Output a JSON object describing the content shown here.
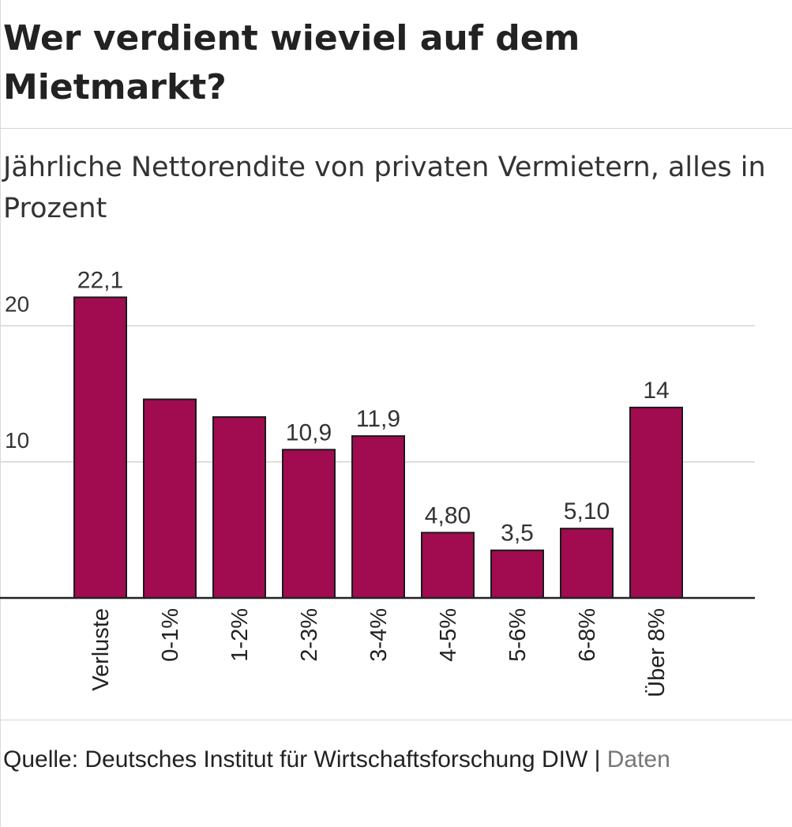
{
  "header": {
    "title": "Wer verdient wieviel auf dem Mietmarkt?",
    "subtitle": "Jährliche Nettorendite von privaten Vermietern, alles in Prozent"
  },
  "chart_data": {
    "type": "bar",
    "categories": [
      "Verluste",
      "0-1%",
      "1-2%",
      "2-3%",
      "3-4%",
      "4-5%",
      "5-6%",
      "6-8%",
      "Über 8%"
    ],
    "values": [
      22.1,
      14.6,
      13.3,
      10.9,
      11.9,
      4.8,
      3.5,
      5.1,
      14
    ],
    "data_labels": [
      "22,1",
      "",
      "",
      "10,9",
      "11,9",
      "4,80",
      "3,5",
      "5,10",
      "14"
    ],
    "y_ticks": [
      10,
      20
    ],
    "ylim": [
      0,
      22.5
    ],
    "grid": true,
    "bar_color": "#a10b4f",
    "bar_stroke": "#1a1a1a"
  },
  "footer": {
    "source": "Quelle: Deutsches Institut für Wirtschaftsforschung DIW",
    "separator": "|",
    "data_link": "Daten"
  }
}
